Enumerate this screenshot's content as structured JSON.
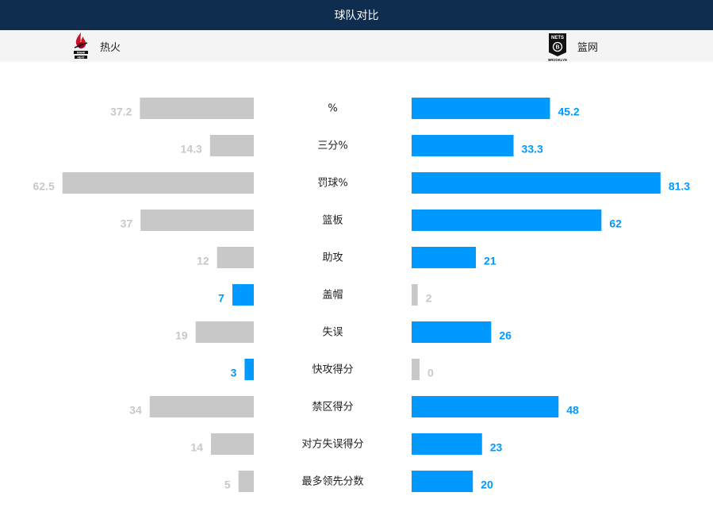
{
  "header": {
    "title": "球队对比"
  },
  "teams": {
    "home": {
      "name": "热火",
      "logo_icon": "heat-logo-icon",
      "logo_text": "MIAMI HEAT"
    },
    "away": {
      "name": "篮网",
      "logo_icon": "nets-logo-icon",
      "logo_text_top": "NETS",
      "logo_text_bottom": "BROOKLYN"
    }
  },
  "colors": {
    "winner": "#0099ff",
    "loser": "#c8c8c8",
    "header_bg": "#0e2d4f"
  },
  "chart_data": {
    "type": "bar",
    "orientation": "horizontal-diverging",
    "categories": [
      "%",
      "三分%",
      "罚球%",
      "篮板",
      "助攻",
      "盖帽",
      "失误",
      "快攻得分",
      "禁区得分",
      "对方失误得分",
      "最多领先分数"
    ],
    "series": [
      {
        "name": "热火",
        "values": [
          37.2,
          14.3,
          62.5,
          37,
          12,
          7,
          19,
          3,
          34,
          14,
          5
        ],
        "labels": [
          "37.2",
          "14.3",
          "62.5",
          "37",
          "12",
          "7",
          "19",
          "3",
          "34",
          "14",
          "5"
        ]
      },
      {
        "name": "篮网",
        "values": [
          45.2,
          33.3,
          81.3,
          62,
          21,
          2,
          26,
          0,
          48,
          23,
          20
        ],
        "labels": [
          "45.2",
          "33.3",
          "81.3",
          "62",
          "21",
          "2",
          "26",
          "0",
          "48",
          "23",
          "20"
        ]
      }
    ],
    "xlim": [
      0,
      80
    ],
    "grid": false,
    "legend": "none"
  }
}
